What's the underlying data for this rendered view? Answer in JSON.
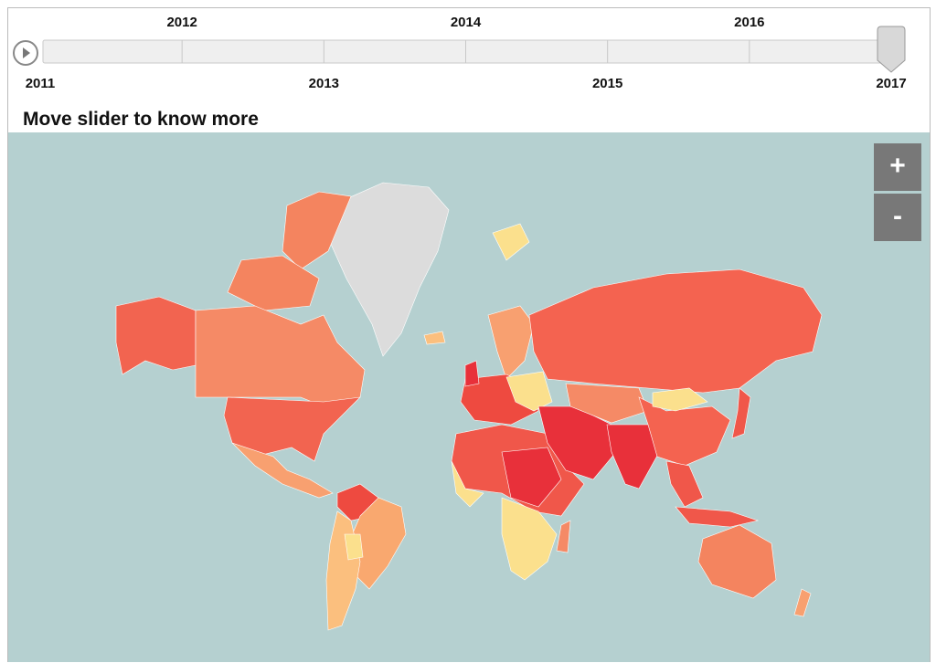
{
  "slider": {
    "years": [
      2011,
      2012,
      2013,
      2014,
      2015,
      2016,
      2017
    ],
    "value": 2017
  },
  "heading": "Move slider to know more",
  "zoom": {
    "in": "+",
    "out": "-"
  }
}
